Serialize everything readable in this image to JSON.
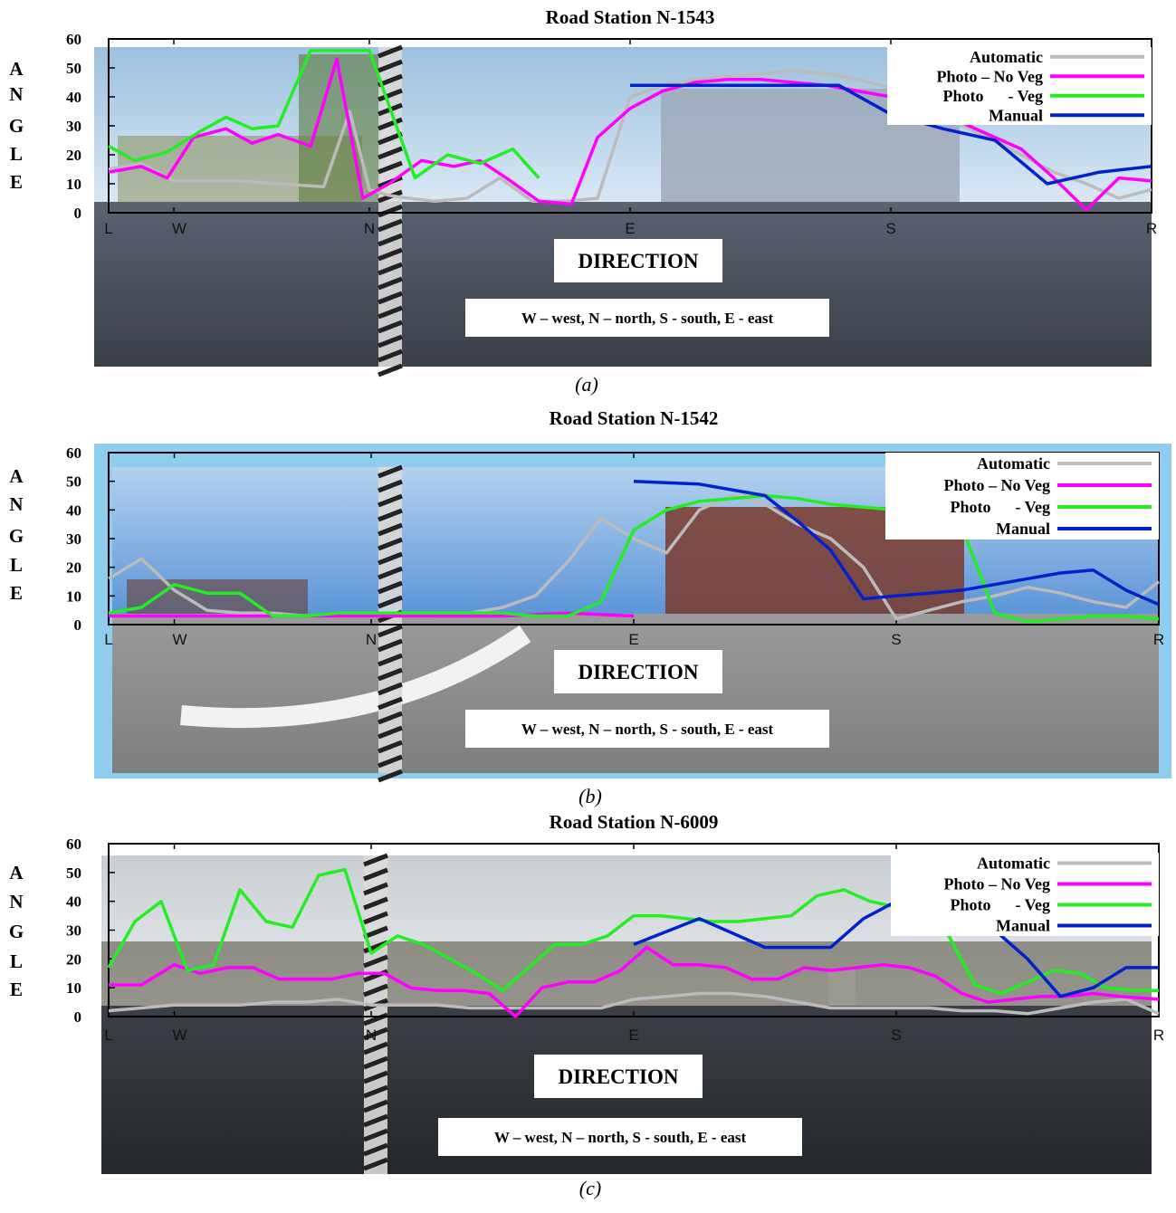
{
  "panels": [
    {
      "title": "Road Station N-1543",
      "caption": "(a)",
      "ylabel": "ANGLE",
      "direction_label": "DIRECTION",
      "direction_note": "W – west, N – north, S - south, E - east"
    },
    {
      "title": "Road Station N-1542",
      "caption": "(b)",
      "ylabel": "ANGLE",
      "direction_label": "DIRECTION",
      "direction_note": "W – west, N – north, S - south, E - east"
    },
    {
      "title": "Road Station N-6009",
      "caption": "(c)",
      "ylabel": "ANGLE",
      "direction_label": "DIRECTION",
      "direction_note": "W – west, N – north, S - south, E - east"
    }
  ],
  "colors": {
    "Automatic": "#bbbbbb",
    "Photo – No Veg": "#ff00ff",
    "Photo      - Veg": "#22ee22",
    "Manual": "#0022cc"
  },
  "chart_data": [
    {
      "type": "line",
      "title": "Road Station N-1543",
      "xlabel": "DIRECTION",
      "ylabel": "ANGLE",
      "ylim": [
        0,
        60
      ],
      "xlim": [
        0,
        16
      ],
      "x_ticks": [
        {
          "label": "L",
          "x": 0
        },
        {
          "label": "W",
          "x": 1
        },
        {
          "label": "N",
          "x": 4
        },
        {
          "label": "E",
          "x": 8
        },
        {
          "label": "S",
          "x": 12
        },
        {
          "label": "R",
          "x": 16
        }
      ],
      "y_ticks": [
        0,
        10,
        20,
        30,
        40,
        50,
        60
      ],
      "legend_position": "top-right",
      "series": [
        {
          "name": "Automatic",
          "x": [
            0,
            0.5,
            1,
            1.4,
            2,
            2.6,
            3.3,
            3.7,
            4,
            4.3,
            4.6,
            5,
            5.5,
            6,
            6.5,
            7,
            7.5,
            8,
            8.5,
            9,
            9.5,
            10,
            10.5,
            11,
            11.5,
            12,
            12.5,
            13,
            13.5,
            14,
            14.5,
            15,
            15.5,
            16
          ],
          "y": [
            15,
            17,
            11,
            11,
            11,
            10,
            9,
            35,
            8,
            6,
            5,
            4,
            5,
            12,
            4,
            4,
            5,
            40,
            44,
            46,
            47,
            48,
            49,
            48,
            46,
            43,
            36,
            31,
            26,
            20,
            14,
            10,
            5,
            8
          ]
        },
        {
          "name": "Photo – No Veg",
          "x": [
            0,
            0.5,
            0.9,
            1.3,
            1.8,
            2.2,
            2.6,
            3.1,
            3.5,
            3.9,
            4.3,
            4.8,
            5.3,
            5.7,
            6.1,
            6.6,
            7.1,
            7.5,
            8,
            8.5,
            9,
            9.5,
            10,
            10.5,
            11,
            11.5,
            12,
            12.5,
            13,
            13.5,
            14,
            14.5,
            15,
            15.5,
            16
          ],
          "y": [
            14,
            16,
            12,
            26,
            29,
            24,
            27,
            23,
            53,
            5,
            10,
            18,
            16,
            18,
            12,
            4,
            3,
            26,
            36,
            42,
            45,
            46,
            46,
            45,
            44,
            42,
            40,
            37,
            32,
            27,
            22,
            12,
            1,
            12,
            11
          ]
        },
        {
          "name": "Photo      - Veg",
          "x": [
            0,
            0.4,
            0.9,
            1.4,
            1.8,
            2.2,
            2.6,
            3.1,
            3.5,
            4,
            4.7,
            5.2,
            5.7,
            6.2,
            6.6
          ],
          "y": [
            23,
            18,
            21,
            28,
            33,
            29,
            30,
            56,
            56,
            56,
            12,
            20,
            17,
            22,
            12
          ]
        },
        {
          "name": "Manual",
          "x": [
            8,
            8.8,
            9.6,
            10.4,
            11.2,
            12,
            12.8,
            13.6,
            14.4,
            15.2,
            16
          ],
          "y": [
            44,
            44,
            44,
            44,
            44,
            34,
            29,
            25,
            10,
            14,
            16
          ]
        }
      ]
    },
    {
      "type": "line",
      "title": "Road Station N-1542",
      "xlabel": "DIRECTION",
      "ylabel": "ANGLE",
      "ylim": [
        0,
        60
      ],
      "xlim": [
        0,
        16
      ],
      "x_ticks": [
        {
          "label": "L",
          "x": 0
        },
        {
          "label": "W",
          "x": 1
        },
        {
          "label": "N",
          "x": 4
        },
        {
          "label": "E",
          "x": 8
        },
        {
          "label": "S",
          "x": 12
        },
        {
          "label": "R",
          "x": 16
        }
      ],
      "y_ticks": [
        0,
        10,
        20,
        30,
        40,
        50,
        60
      ],
      "legend_position": "top-right",
      "series": [
        {
          "name": "Automatic",
          "x": [
            0,
            0.5,
            1,
            1.5,
            2,
            2.5,
            3,
            3.5,
            4,
            4.5,
            5,
            5.5,
            6,
            6.5,
            7,
            7.5,
            8,
            8.5,
            9,
            9.5,
            10,
            10.5,
            11,
            11.5,
            12,
            12.5,
            13,
            13.5,
            14,
            14.5,
            15,
            15.5,
            16
          ],
          "y": [
            16,
            23,
            12,
            5,
            4,
            4,
            3,
            3,
            3,
            3,
            3,
            4,
            6,
            10,
            22,
            37,
            30,
            25,
            40,
            45,
            42,
            35,
            30,
            20,
            2,
            5,
            8,
            10,
            13,
            11,
            8,
            6,
            15
          ]
        },
        {
          "name": "Photo – No Veg",
          "x": [
            0,
            2,
            4,
            6,
            7,
            8
          ],
          "y": [
            3,
            3,
            3,
            3,
            4,
            3
          ]
        },
        {
          "name": "Photo      - Veg",
          "x": [
            0,
            0.5,
            1,
            1.5,
            2,
            2.5,
            3,
            3.5,
            4,
            4.5,
            5,
            5.5,
            6,
            6.5,
            7,
            7.5,
            8,
            8.5,
            9,
            9.5,
            10,
            10.5,
            11,
            11.5,
            12,
            12.5,
            13,
            13.5,
            14,
            14.5,
            15,
            15.5,
            16
          ],
          "y": [
            4,
            6,
            14,
            11,
            11,
            3,
            3,
            4,
            4,
            4,
            4,
            4,
            4,
            3,
            3,
            8,
            33,
            40,
            43,
            44,
            45,
            44,
            42,
            41,
            40,
            38,
            34,
            4,
            1,
            2,
            3,
            3,
            2
          ]
        },
        {
          "name": "Manual",
          "x": [
            8,
            9,
            10,
            10.5,
            11,
            11.5,
            12,
            12.5,
            13,
            13.5,
            14,
            14.5,
            15,
            15.5,
            16
          ],
          "y": [
            50,
            49,
            45,
            36,
            26,
            9,
            10,
            11,
            12,
            14,
            16,
            18,
            19,
            12,
            7
          ]
        }
      ]
    },
    {
      "type": "line",
      "title": "Road Station N-6009",
      "xlabel": "DIRECTION",
      "ylabel": "ANGLE",
      "ylim": [
        0,
        60
      ],
      "xlim": [
        0,
        16
      ],
      "x_ticks": [
        {
          "label": "L",
          "x": 0
        },
        {
          "label": "W",
          "x": 1
        },
        {
          "label": "N",
          "x": 4
        },
        {
          "label": "E",
          "x": 8
        },
        {
          "label": "S",
          "x": 12
        },
        {
          "label": "R",
          "x": 16
        }
      ],
      "y_ticks": [
        0,
        10,
        20,
        30,
        40,
        50,
        60
      ],
      "legend_position": "top-right",
      "series": [
        {
          "name": "Automatic",
          "x": [
            0,
            0.5,
            1,
            1.5,
            2,
            2.5,
            3,
            3.5,
            4,
            4.5,
            5,
            5.5,
            6,
            6.5,
            7,
            7.5,
            8,
            8.5,
            9,
            9.5,
            10,
            10.5,
            11,
            11.5,
            12,
            12.5,
            13,
            13.5,
            14,
            14.5,
            15,
            15.5,
            16
          ],
          "y": [
            2,
            3,
            4,
            4,
            4,
            5,
            5,
            6,
            4,
            4,
            4,
            3,
            3,
            3,
            3,
            3,
            6,
            7,
            8,
            8,
            7,
            5,
            3,
            3,
            3,
            3,
            2,
            2,
            1,
            3,
            5,
            6,
            1
          ]
        },
        {
          "name": "Photo – No Veg",
          "x": [
            0,
            0.5,
            1,
            1.4,
            1.8,
            2.2,
            2.6,
            3,
            3.4,
            3.8,
            4.2,
            4.6,
            5,
            5.4,
            5.8,
            6.2,
            6.6,
            7,
            7.4,
            7.8,
            8.2,
            8.6,
            9,
            9.4,
            9.8,
            10.2,
            10.6,
            11,
            11.4,
            11.8,
            12.2,
            12.6,
            13,
            13.4,
            13.8,
            14.2,
            14.6,
            15,
            15.4,
            16
          ],
          "y": [
            11,
            11,
            18,
            15,
            17,
            17,
            13,
            13,
            13,
            15,
            15,
            10,
            9,
            9,
            8,
            0,
            10,
            12,
            12,
            16,
            24,
            18,
            18,
            17,
            13,
            13,
            17,
            16,
            17,
            18,
            17,
            14,
            8,
            5,
            6,
            7,
            7,
            8,
            7,
            6
          ]
        },
        {
          "name": "Photo      - Veg",
          "x": [
            0,
            0.4,
            0.8,
            1.2,
            1.6,
            2,
            2.4,
            2.8,
            3.2,
            3.6,
            4,
            4.4,
            4.8,
            5.2,
            5.6,
            6,
            6.4,
            6.8,
            7.2,
            7.6,
            8,
            8.4,
            8.8,
            9.2,
            9.6,
            10,
            10.4,
            10.8,
            11.2,
            11.6,
            12,
            12.4,
            12.8,
            13.2,
            13.6,
            14,
            14.4,
            14.8,
            15.2,
            15.6,
            16
          ],
          "y": [
            17,
            33,
            40,
            16,
            18,
            44,
            33,
            31,
            49,
            51,
            22,
            28,
            25,
            20,
            15,
            9,
            17,
            25,
            25,
            28,
            35,
            35,
            34,
            33,
            33,
            34,
            35,
            42,
            44,
            40,
            38,
            33,
            28,
            11,
            8,
            12,
            16,
            15,
            10,
            9,
            9
          ]
        },
        {
          "name": "Manual",
          "x": [
            8,
            9,
            10,
            11,
            11.5,
            12,
            12.5,
            13,
            13.5,
            14,
            14.5,
            15,
            15.5,
            16
          ],
          "y": [
            25,
            34,
            24,
            24,
            34,
            40,
            40,
            38,
            30,
            20,
            7,
            10,
            17,
            17
          ]
        }
      ]
    }
  ]
}
